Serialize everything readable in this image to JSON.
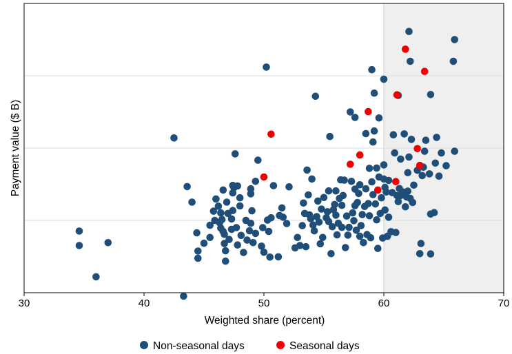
{
  "chart_data": {
    "type": "scatter",
    "title": "",
    "xlabel": "Weighted share (percent)",
    "ylabel": "Payment value ($ B)",
    "xlim": [
      30,
      70
    ],
    "ylim": [
      0,
      100
    ],
    "x_ticks": [
      "30",
      "40",
      "50",
      "60",
      "70"
    ],
    "y_tick_labels_shown": false,
    "shaded_region": {
      "x_from": 60,
      "x_to": 70,
      "color": "#efefef"
    },
    "grid": "horizontal",
    "legend_position": "bottom",
    "series": [
      {
        "name": "Non-seasonal days",
        "color": "#1f4e79",
        "points": [
          [
            34.6,
            21.3
          ],
          [
            34.6,
            16.3
          ],
          [
            36.0,
            5.5
          ],
          [
            37.0,
            17.3
          ],
          [
            42.5,
            53.5
          ],
          [
            43.3,
            -1.2
          ],
          [
            43.6,
            36.7
          ],
          [
            44.0,
            31.3
          ],
          [
            44.4,
            20.7
          ],
          [
            44.5,
            14.4
          ],
          [
            44.5,
            11.9
          ],
          [
            45.0,
            17.1
          ],
          [
            45.5,
            19.1
          ],
          [
            45.5,
            23.3
          ],
          [
            45.8,
            28.2
          ],
          [
            45.9,
            25.0
          ],
          [
            46.0,
            32.4
          ],
          [
            46.2,
            29.9
          ],
          [
            46.3,
            24.2
          ],
          [
            46.4,
            22.3
          ],
          [
            46.4,
            27.6
          ],
          [
            46.5,
            25.3
          ],
          [
            46.6,
            21.2
          ],
          [
            46.6,
            35.5
          ],
          [
            46.7,
            20.2
          ],
          [
            46.7,
            17.0
          ],
          [
            46.8,
            10.9
          ],
          [
            46.8,
            14.5
          ],
          [
            46.9,
            31.3
          ],
          [
            47.0,
            27.4
          ],
          [
            47.1,
            18.4
          ],
          [
            47.3,
            21.9
          ],
          [
            47.3,
            25.5
          ],
          [
            47.4,
            34.5
          ],
          [
            47.4,
            37.1
          ],
          [
            47.4,
            28.4
          ],
          [
            47.5,
            36.3
          ],
          [
            47.6,
            48.0
          ],
          [
            47.7,
            22.5
          ],
          [
            47.8,
            16.5
          ],
          [
            47.8,
            36.9
          ],
          [
            48.0,
            32.8
          ],
          [
            48.0,
            30.0
          ],
          [
            48.1,
            19.8
          ],
          [
            48.3,
            13.9
          ],
          [
            48.5,
            25.0
          ],
          [
            48.6,
            18.2
          ],
          [
            48.8,
            21.4
          ],
          [
            48.9,
            24.0
          ],
          [
            48.9,
            35.9
          ],
          [
            48.9,
            34.2
          ],
          [
            49.0,
            28.3
          ],
          [
            49.1,
            17.3
          ],
          [
            49.3,
            20.5
          ],
          [
            49.3,
            38.5
          ],
          [
            49.5,
            45.8
          ],
          [
            49.8,
            16.1
          ],
          [
            49.9,
            22.5
          ],
          [
            50.0,
            14.0
          ],
          [
            50.2,
            78.0
          ],
          [
            50.3,
            25.1
          ],
          [
            50.4,
            21.2
          ],
          [
            50.5,
            12.3
          ],
          [
            50.6,
            25.9
          ],
          [
            50.8,
            37.0
          ],
          [
            51.2,
            12.4
          ],
          [
            51.3,
            26.7
          ],
          [
            51.5,
            29.3
          ],
          [
            51.6,
            26.1
          ],
          [
            51.9,
            23.9
          ],
          [
            52.1,
            36.6
          ],
          [
            52.6,
            15.5
          ],
          [
            52.8,
            19.1
          ],
          [
            53.0,
            16.3
          ],
          [
            53.2,
            23.2
          ],
          [
            53.3,
            31.0
          ],
          [
            53.4,
            27.4
          ],
          [
            53.5,
            15.9
          ],
          [
            53.6,
            42.4
          ],
          [
            53.7,
            33.8
          ],
          [
            53.8,
            26.9
          ],
          [
            53.9,
            25.6
          ],
          [
            54.0,
            39.3
          ],
          [
            54.1,
            23.4
          ],
          [
            54.2,
            21.4
          ],
          [
            54.3,
            67.9
          ],
          [
            54.4,
            26.3
          ],
          [
            54.5,
            31.7
          ],
          [
            54.6,
            24.4
          ],
          [
            54.7,
            16.9
          ],
          [
            54.8,
            28.9
          ],
          [
            54.9,
            19.1
          ],
          [
            55.0,
            32.9
          ],
          [
            55.2,
            25.9
          ],
          [
            55.3,
            28.0
          ],
          [
            55.4,
            24.6
          ],
          [
            55.4,
            35.2
          ],
          [
            55.5,
            54.0
          ],
          [
            55.6,
            13.5
          ],
          [
            55.7,
            22.8
          ],
          [
            55.8,
            28.7
          ],
          [
            55.9,
            30.5
          ],
          [
            56.0,
            26.8
          ],
          [
            56.0,
            35.2
          ],
          [
            56.1,
            20.0
          ],
          [
            56.2,
            24.0
          ],
          [
            56.3,
            32.6
          ],
          [
            56.4,
            39.0
          ],
          [
            56.5,
            22.6
          ],
          [
            56.5,
            30.2
          ],
          [
            56.6,
            33.6
          ],
          [
            56.7,
            38.9
          ],
          [
            56.8,
            15.6
          ],
          [
            56.9,
            26.5
          ],
          [
            57.0,
            19.9
          ],
          [
            57.1,
            22.6
          ],
          [
            57.2,
            62.5
          ],
          [
            57.3,
            38.5
          ],
          [
            57.4,
            27.6
          ],
          [
            57.5,
            24.9
          ],
          [
            57.6,
            30.1
          ],
          [
            57.6,
            35.8
          ],
          [
            57.6,
            60.6
          ],
          [
            57.7,
            21.6
          ],
          [
            57.8,
            31.2
          ],
          [
            57.9,
            34.3
          ],
          [
            58.0,
            37.3
          ],
          [
            58.0,
            19.5
          ],
          [
            58.1,
            23.2
          ],
          [
            58.2,
            27.0
          ],
          [
            58.3,
            17.3
          ],
          [
            58.4,
            29.8
          ],
          [
            58.5,
            35.9
          ],
          [
            58.5,
            55.0
          ],
          [
            58.6,
            20.1
          ],
          [
            58.7,
            30.8
          ],
          [
            58.8,
            43.0
          ],
          [
            58.8,
            26.6
          ],
          [
            58.9,
            19.0
          ],
          [
            59.0,
            38.3
          ],
          [
            59.0,
            77.1
          ],
          [
            59.1,
            52.1
          ],
          [
            59.1,
            33.9
          ],
          [
            59.2,
            55.9
          ],
          [
            59.2,
            69.0
          ],
          [
            59.3,
            30.7
          ],
          [
            59.4,
            25.2
          ],
          [
            59.4,
            43.1
          ],
          [
            59.5,
            15.3
          ],
          [
            59.6,
            40.0
          ],
          [
            59.6,
            60.4
          ],
          [
            59.7,
            27.4
          ],
          [
            59.8,
            32.8
          ],
          [
            59.9,
            18.9
          ],
          [
            60.0,
            39.3
          ],
          [
            60.0,
            44.2
          ],
          [
            60.0,
            73.8
          ],
          [
            60.1,
            36.4
          ],
          [
            60.1,
            28.6
          ],
          [
            60.2,
            34.8
          ],
          [
            60.3,
            19.5
          ],
          [
            60.4,
            26.1
          ],
          [
            60.4,
            38.8
          ],
          [
            60.6,
            21.1
          ],
          [
            60.7,
            34.6
          ],
          [
            60.8,
            54.6
          ],
          [
            60.9,
            48.3
          ],
          [
            61.0,
            20.8
          ],
          [
            61.1,
            33.6
          ],
          [
            61.2,
            31.5
          ],
          [
            61.2,
            68.2
          ],
          [
            61.3,
            36.0
          ],
          [
            61.4,
            46.2
          ],
          [
            61.4,
            33.6
          ],
          [
            61.6,
            34.8
          ],
          [
            61.7,
            54.9
          ],
          [
            61.8,
            29.7
          ],
          [
            61.9,
            33.1
          ],
          [
            62.0,
            35.1
          ],
          [
            62.0,
            41.5
          ],
          [
            62.1,
            90.3
          ],
          [
            62.1,
            46.9
          ],
          [
            62.2,
            32.6
          ],
          [
            62.2,
            80.0
          ],
          [
            62.3,
            53.0
          ],
          [
            62.4,
            31.2
          ],
          [
            62.5,
            37.2
          ],
          [
            62.8,
            42.3
          ],
          [
            63.0,
            13.5
          ],
          [
            63.1,
            17.0
          ],
          [
            63.2,
            40.5
          ],
          [
            63.3,
            43.4
          ],
          [
            63.4,
            48.9
          ],
          [
            63.5,
            52.7
          ],
          [
            63.8,
            41.1
          ],
          [
            63.9,
            13.4
          ],
          [
            63.9,
            68.5
          ],
          [
            63.9,
            27.2
          ],
          [
            64.2,
            27.7
          ],
          [
            64.3,
            44.8
          ],
          [
            64.4,
            53.7
          ],
          [
            64.6,
            40.3
          ],
          [
            64.8,
            48.3
          ],
          [
            65.2,
            43.9
          ],
          [
            65.8,
            80.0
          ],
          [
            65.9,
            48.9
          ],
          [
            65.9,
            87.5
          ]
        ]
      },
      {
        "name": "Seasonal days",
        "color": "#ee0000",
        "points": [
          [
            50.6,
            54.8
          ],
          [
            50.0,
            40.0
          ],
          [
            57.2,
            44.4
          ],
          [
            58.0,
            47.6
          ],
          [
            58.7,
            62.6
          ],
          [
            59.5,
            35.5
          ],
          [
            61.0,
            38.4
          ],
          [
            61.1,
            68.4
          ],
          [
            61.8,
            84.2
          ],
          [
            62.8,
            49.8
          ],
          [
            63.0,
            44.0
          ],
          [
            63.4,
            76.5
          ]
        ]
      }
    ]
  }
}
